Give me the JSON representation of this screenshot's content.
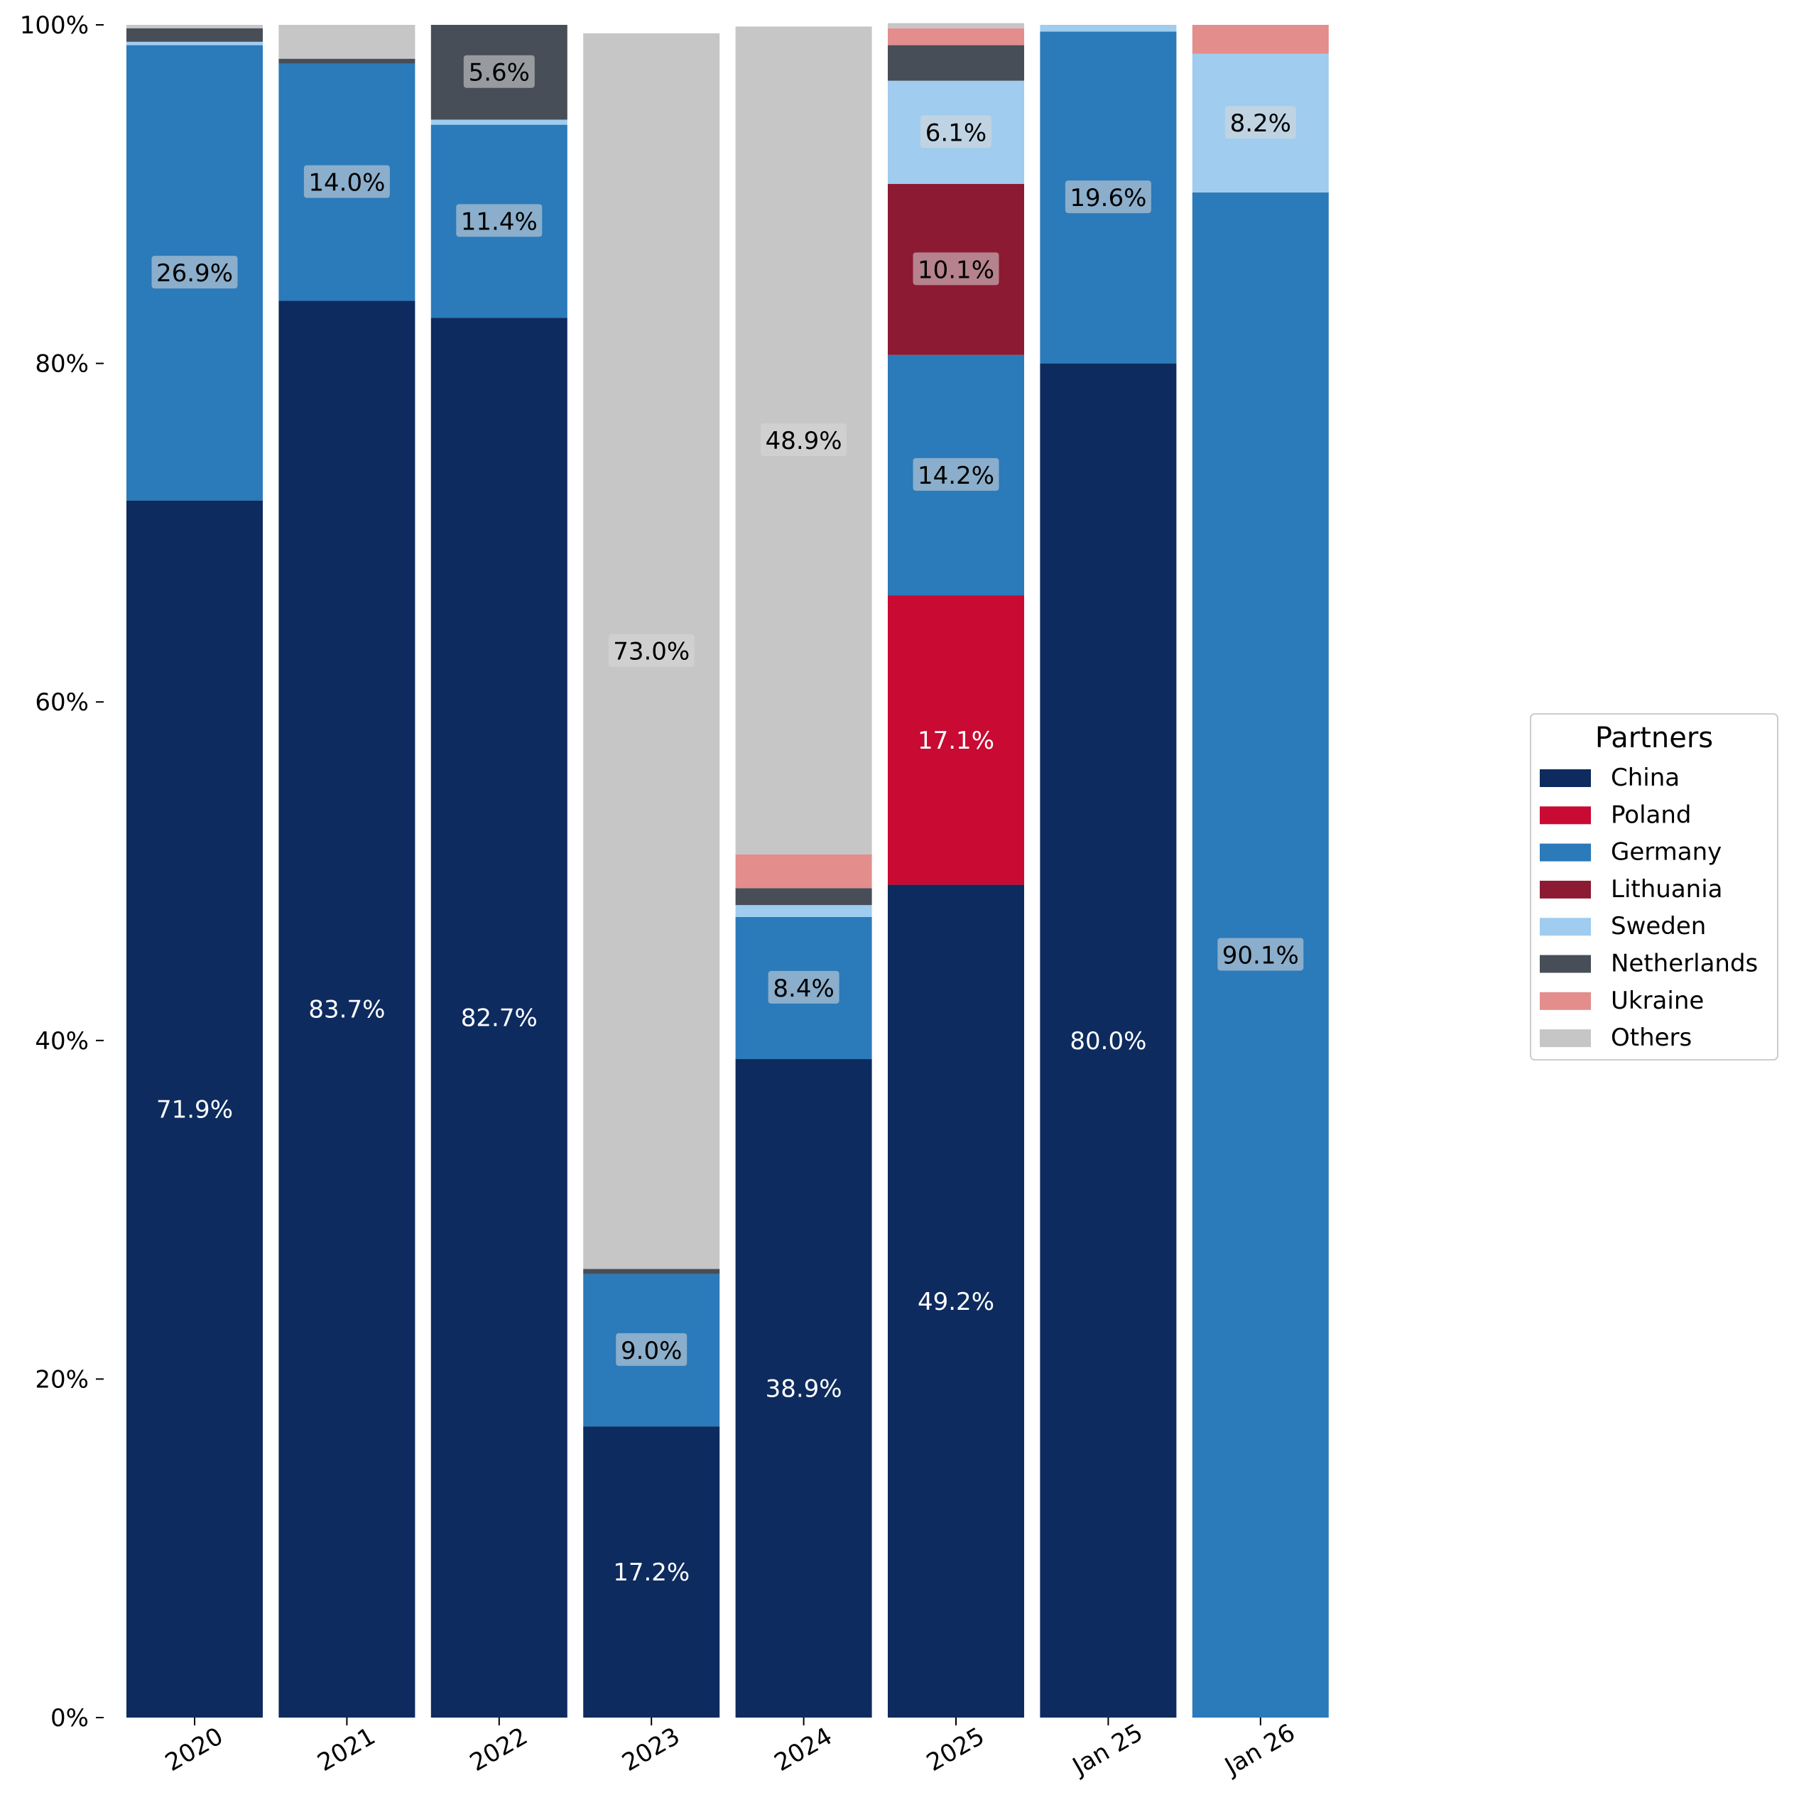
{
  "chart_data": {
    "type": "bar",
    "stacked": true,
    "normalized": true,
    "categories": [
      "2020",
      "2021",
      "2022",
      "2023",
      "2024",
      "2025",
      "Jan 25",
      "Jan 26"
    ],
    "ylim": [
      0,
      100
    ],
    "yticks": [
      0,
      20,
      40,
      60,
      80,
      100
    ],
    "ytick_labels": [
      "0%",
      "20%",
      "40%",
      "60%",
      "80%",
      "100%"
    ],
    "grid": false,
    "legend": {
      "title": "Partners",
      "position": "right"
    },
    "series": [
      {
        "name": "China",
        "color": "#0d2b5e",
        "values": [
          71.9,
          83.7,
          82.7,
          17.2,
          38.9,
          49.2,
          80.0,
          0.0
        ]
      },
      {
        "name": "Poland",
        "color": "#c90a33",
        "values": [
          0.0,
          0.0,
          0.0,
          0.0,
          0.0,
          17.1,
          0.0,
          0.0
        ]
      },
      {
        "name": "Germany",
        "color": "#2b7aba",
        "values": [
          26.9,
          14.0,
          11.4,
          9.0,
          8.4,
          14.2,
          19.6,
          90.1
        ]
      },
      {
        "name": "Lithuania",
        "color": "#8b1a32",
        "values": [
          0.0,
          0.0,
          0.0,
          0.0,
          0.0,
          10.1,
          0.0,
          0.0
        ]
      },
      {
        "name": "Sweden",
        "color": "#9fccef",
        "values": [
          0.2,
          0.0,
          0.3,
          0.0,
          0.7,
          6.1,
          0.4,
          8.2
        ]
      },
      {
        "name": "Netherlands",
        "color": "#474e57",
        "values": [
          0.8,
          0.3,
          5.6,
          0.3,
          1.0,
          2.1,
          0.0,
          0.0
        ]
      },
      {
        "name": "Ukraine",
        "color": "#e38d8d",
        "values": [
          0.0,
          0.0,
          0.0,
          0.0,
          2.0,
          1.0,
          0.0,
          1.7
        ]
      },
      {
        "name": "Others",
        "color": "#c6c6c6",
        "values": [
          0.2,
          2.0,
          0.0,
          73.0,
          48.9,
          0.3,
          0.0,
          0.0
        ]
      }
    ],
    "data_labels": [
      {
        "category": "2020",
        "series": "China",
        "text": "71.9%"
      },
      {
        "category": "2020",
        "series": "Germany",
        "text": "26.9%"
      },
      {
        "category": "2021",
        "series": "China",
        "text": "83.7%"
      },
      {
        "category": "2021",
        "series": "Germany",
        "text": "14.0%"
      },
      {
        "category": "2022",
        "series": "China",
        "text": "82.7%"
      },
      {
        "category": "2022",
        "series": "Germany",
        "text": "11.4%"
      },
      {
        "category": "2022",
        "series": "Netherlands",
        "text": "5.6%"
      },
      {
        "category": "2023",
        "series": "China",
        "text": "17.2%"
      },
      {
        "category": "2023",
        "series": "Germany",
        "text": "9.0%"
      },
      {
        "category": "2023",
        "series": "Others",
        "text": "73.0%"
      },
      {
        "category": "2024",
        "series": "China",
        "text": "38.9%"
      },
      {
        "category": "2024",
        "series": "Germany",
        "text": "8.4%"
      },
      {
        "category": "2024",
        "series": "Others",
        "text": "48.9%"
      },
      {
        "category": "2025",
        "series": "China",
        "text": "49.2%"
      },
      {
        "category": "2025",
        "series": "Poland",
        "text": "17.1%"
      },
      {
        "category": "2025",
        "series": "Germany",
        "text": "14.2%"
      },
      {
        "category": "2025",
        "series": "Lithuania",
        "text": "10.1%"
      },
      {
        "category": "2025",
        "series": "Sweden",
        "text": "6.1%"
      },
      {
        "category": "Jan 25",
        "series": "China",
        "text": "80.0%"
      },
      {
        "category": "Jan 25",
        "series": "Germany",
        "text": "19.6%"
      },
      {
        "category": "Jan 26",
        "series": "Germany",
        "text": "90.1%"
      },
      {
        "category": "Jan 26",
        "series": "Sweden",
        "text": "8.2%"
      }
    ]
  }
}
